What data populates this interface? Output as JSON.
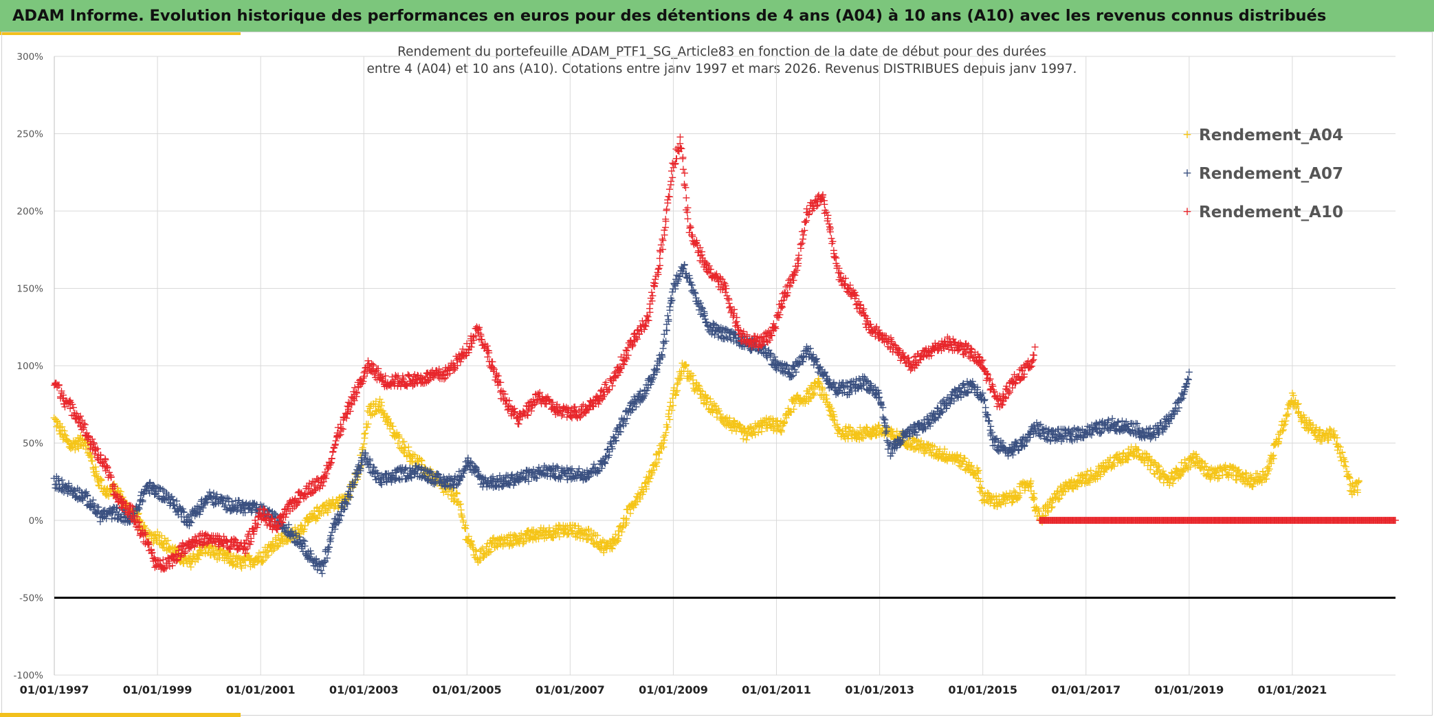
{
  "header": {
    "title": "ADAM Informe. Evolution historique des performances en euros pour des détentions de 4 ans (A04) à 10 ans (A10) avec les revenus connus distribués"
  },
  "colors": {
    "banner": "#7cc67c",
    "accent": "#f2c01c",
    "A04": "#f5c518",
    "A07": "#3a5080",
    "A10": "#e8262b",
    "grid": "#d9d9d9",
    "threshold": "#000000"
  },
  "chart_data": {
    "type": "scatter",
    "title_lines": [
      "Rendement du portefeuille ADAM_PTF1_SG_Article83  en fonction de la date de début pour des durées",
      "entre 4 (A04) et 10 ans (A10). Cotations entre janv 1997 et mars 2026. Revenus DISTRIBUES depuis janv 1997."
    ],
    "xlabel": "",
    "ylabel": "",
    "x_range": [
      "01/01/1997",
      "01/01/2023"
    ],
    "x_ticks": [
      "01/01/1997",
      "01/01/1999",
      "01/01/2001",
      "01/01/2003",
      "01/01/2005",
      "01/01/2007",
      "01/01/2009",
      "01/01/2011",
      "01/01/2013",
      "01/01/2015",
      "01/01/2017",
      "01/01/2019",
      "01/01/2021"
    ],
    "ylim": [
      -100,
      300
    ],
    "y_ticks": [
      300,
      250,
      200,
      150,
      100,
      50,
      0,
      -50,
      -100
    ],
    "y_tick_labels": [
      "300%",
      "250%",
      "200%",
      "150%",
      "100%",
      "50%",
      "0%",
      "-50%",
      "-100%"
    ],
    "grid": true,
    "legend_position": "top-right",
    "marker": "+",
    "reference_line": {
      "y": -50,
      "label": ""
    },
    "series": [
      {
        "name": "Rendement_A04",
        "key": "A04",
        "end_year": 2022.3,
        "points": [
          [
            1997,
            65
          ],
          [
            1997.3,
            48
          ],
          [
            1997.6,
            52
          ],
          [
            1997.8,
            30
          ],
          [
            1998,
            18
          ],
          [
            1998.2,
            20
          ],
          [
            1998.4,
            8
          ],
          [
            1998.6,
            3
          ],
          [
            1998.8,
            -12
          ],
          [
            1999,
            -10
          ],
          [
            1999.3,
            -20
          ],
          [
            1999.6,
            -28
          ],
          [
            1999.9,
            -18
          ],
          [
            2000.2,
            -22
          ],
          [
            2000.6,
            -28
          ],
          [
            2001,
            -24
          ],
          [
            2001.3,
            -14
          ],
          [
            2001.6,
            -10
          ],
          [
            2001.9,
            -2
          ],
          [
            2002.2,
            8
          ],
          [
            2002.6,
            12
          ],
          [
            2002.9,
            30
          ],
          [
            2003.1,
            70
          ],
          [
            2003.3,
            75
          ],
          [
            2003.6,
            55
          ],
          [
            2003.9,
            42
          ],
          [
            2004.2,
            32
          ],
          [
            2004.5,
            22
          ],
          [
            2004.8,
            15
          ],
          [
            2005,
            -10
          ],
          [
            2005.2,
            -25
          ],
          [
            2005.5,
            -15
          ],
          [
            2006,
            -12
          ],
          [
            2006.5,
            -8
          ],
          [
            2007,
            -6
          ],
          [
            2007.4,
            -10
          ],
          [
            2007.7,
            -18
          ],
          [
            2007.9,
            -12
          ],
          [
            2008.2,
            10
          ],
          [
            2008.5,
            25
          ],
          [
            2008.8,
            50
          ],
          [
            2009,
            80
          ],
          [
            2009.2,
            100
          ],
          [
            2009.4,
            88
          ],
          [
            2009.6,
            78
          ],
          [
            2010,
            65
          ],
          [
            2010.4,
            55
          ],
          [
            2010.8,
            63
          ],
          [
            2011.1,
            60
          ],
          [
            2011.3,
            75
          ],
          [
            2011.6,
            80
          ],
          [
            2011.8,
            88
          ],
          [
            2012,
            75
          ],
          [
            2012.2,
            57
          ],
          [
            2012.6,
            56
          ],
          [
            2013,
            58
          ],
          [
            2013.5,
            52
          ],
          [
            2014,
            45
          ],
          [
            2014.5,
            40
          ],
          [
            2014.9,
            30
          ],
          [
            2015,
            15
          ],
          [
            2015.3,
            12
          ],
          [
            2015.6,
            15
          ],
          [
            2015.9,
            25
          ],
          [
            2016.1,
            0
          ],
          [
            2016.4,
            15
          ],
          [
            2016.8,
            25
          ],
          [
            2017.2,
            30
          ],
          [
            2017.6,
            40
          ],
          [
            2018,
            45
          ],
          [
            2018.3,
            35
          ],
          [
            2018.6,
            25
          ],
          [
            2018.9,
            35
          ],
          [
            2019.1,
            40
          ],
          [
            2019.4,
            30
          ],
          [
            2019.8,
            32
          ],
          [
            2020.2,
            25
          ],
          [
            2020.5,
            30
          ],
          [
            2021,
            80
          ],
          [
            2021.2,
            65
          ],
          [
            2021.5,
            55
          ],
          [
            2021.8,
            55
          ],
          [
            2022,
            38
          ],
          [
            2022.15,
            20
          ],
          [
            2022.3,
            22
          ]
        ]
      },
      {
        "name": "Rendement_A07",
        "key": "A07",
        "end_year": 2019,
        "points": [
          [
            1997,
            25
          ],
          [
            1997.3,
            20
          ],
          [
            1997.6,
            15
          ],
          [
            1997.9,
            3
          ],
          [
            1998.2,
            5
          ],
          [
            1998.5,
            0
          ],
          [
            1998.8,
            22
          ],
          [
            1999.2,
            15
          ],
          [
            1999.6,
            0
          ],
          [
            2000,
            15
          ],
          [
            2000.4,
            10
          ],
          [
            2000.8,
            8
          ],
          [
            2001.1,
            5
          ],
          [
            2001.5,
            -5
          ],
          [
            2001.8,
            -15
          ],
          [
            2002,
            -25
          ],
          [
            2002.2,
            -32
          ],
          [
            2002.4,
            -5
          ],
          [
            2002.7,
            15
          ],
          [
            2003,
            42
          ],
          [
            2003.3,
            25
          ],
          [
            2003.7,
            30
          ],
          [
            2004.1,
            32
          ],
          [
            2004.5,
            25
          ],
          [
            2004.8,
            25
          ],
          [
            2005,
            38
          ],
          [
            2005.3,
            25
          ],
          [
            2005.7,
            25
          ],
          [
            2006.1,
            28
          ],
          [
            2006.5,
            32
          ],
          [
            2006.9,
            30
          ],
          [
            2007.3,
            30
          ],
          [
            2007.6,
            35
          ],
          [
            2007.9,
            55
          ],
          [
            2008.2,
            75
          ],
          [
            2008.5,
            85
          ],
          [
            2008.8,
            110
          ],
          [
            2009,
            150
          ],
          [
            2009.2,
            165
          ],
          [
            2009.4,
            145
          ],
          [
            2009.7,
            125
          ],
          [
            2010,
            120
          ],
          [
            2010.4,
            115
          ],
          [
            2010.8,
            110
          ],
          [
            2011,
            100
          ],
          [
            2011.3,
            95
          ],
          [
            2011.6,
            110
          ],
          [
            2011.9,
            95
          ],
          [
            2012.1,
            85
          ],
          [
            2012.4,
            85
          ],
          [
            2012.7,
            90
          ],
          [
            2013,
            80
          ],
          [
            2013.2,
            45
          ],
          [
            2013.5,
            55
          ],
          [
            2013.8,
            60
          ],
          [
            2014,
            65
          ],
          [
            2014.4,
            80
          ],
          [
            2014.8,
            88
          ],
          [
            2015,
            80
          ],
          [
            2015.2,
            50
          ],
          [
            2015.5,
            45
          ],
          [
            2015.8,
            50
          ],
          [
            2016,
            60
          ],
          [
            2016.3,
            55
          ],
          [
            2016.7,
            55
          ],
          [
            2017.1,
            58
          ],
          [
            2017.5,
            62
          ],
          [
            2017.9,
            60
          ],
          [
            2018.2,
            55
          ],
          [
            2018.5,
            60
          ],
          [
            2018.8,
            75
          ],
          [
            2019,
            92
          ],
          [
            2019.1,
            80
          ]
        ]
      },
      {
        "name": "Rendement_A10",
        "key": "A10",
        "end_year": 2016,
        "points": [
          [
            1997,
            90
          ],
          [
            1997.2,
            78
          ],
          [
            1997.5,
            65
          ],
          [
            1997.7,
            50
          ],
          [
            1998,
            35
          ],
          [
            1998.2,
            15
          ],
          [
            1998.5,
            5
          ],
          [
            1998.8,
            -15
          ],
          [
            1999,
            -30
          ],
          [
            1999.3,
            -25
          ],
          [
            1999.6,
            -15
          ],
          [
            1999.9,
            -12
          ],
          [
            2000.3,
            -14
          ],
          [
            2000.7,
            -18
          ],
          [
            2001,
            5
          ],
          [
            2001.3,
            -5
          ],
          [
            2001.6,
            10
          ],
          [
            2001.9,
            20
          ],
          [
            2002.2,
            25
          ],
          [
            2002.5,
            55
          ],
          [
            2002.8,
            80
          ],
          [
            2003.1,
            100
          ],
          [
            2003.4,
            90
          ],
          [
            2003.8,
            90
          ],
          [
            2004.2,
            92
          ],
          [
            2004.6,
            95
          ],
          [
            2005,
            110
          ],
          [
            2005.2,
            125
          ],
          [
            2005.4,
            108
          ],
          [
            2005.7,
            80
          ],
          [
            2006,
            65
          ],
          [
            2006.4,
            80
          ],
          [
            2006.8,
            70
          ],
          [
            2007.2,
            70
          ],
          [
            2007.6,
            80
          ],
          [
            2007.9,
            95
          ],
          [
            2008.2,
            115
          ],
          [
            2008.5,
            130
          ],
          [
            2008.8,
            180
          ],
          [
            2009,
            230
          ],
          [
            2009.15,
            245
          ],
          [
            2009.3,
            190
          ],
          [
            2009.6,
            165
          ],
          [
            2010,
            150
          ],
          [
            2010.3,
            120
          ],
          [
            2010.6,
            115
          ],
          [
            2010.9,
            120
          ],
          [
            2011.1,
            140
          ],
          [
            2011.4,
            165
          ],
          [
            2011.6,
            200
          ],
          [
            2011.9,
            210
          ],
          [
            2012.2,
            160
          ],
          [
            2012.5,
            145
          ],
          [
            2012.8,
            125
          ],
          [
            2013.2,
            115
          ],
          [
            2013.6,
            100
          ],
          [
            2013.9,
            108
          ],
          [
            2014.3,
            115
          ],
          [
            2014.7,
            110
          ],
          [
            2015,
            100
          ],
          [
            2015.3,
            75
          ],
          [
            2015.6,
            90
          ],
          [
            2015.9,
            100
          ],
          [
            2016,
            110
          ],
          [
            2016.05,
            120
          ]
        ]
      },
      {
        "name": "Rendement_A10",
        "key": "A10",
        "start_year": 2016.1,
        "end_year": 2023,
        "constant_value": 0
      }
    ]
  }
}
